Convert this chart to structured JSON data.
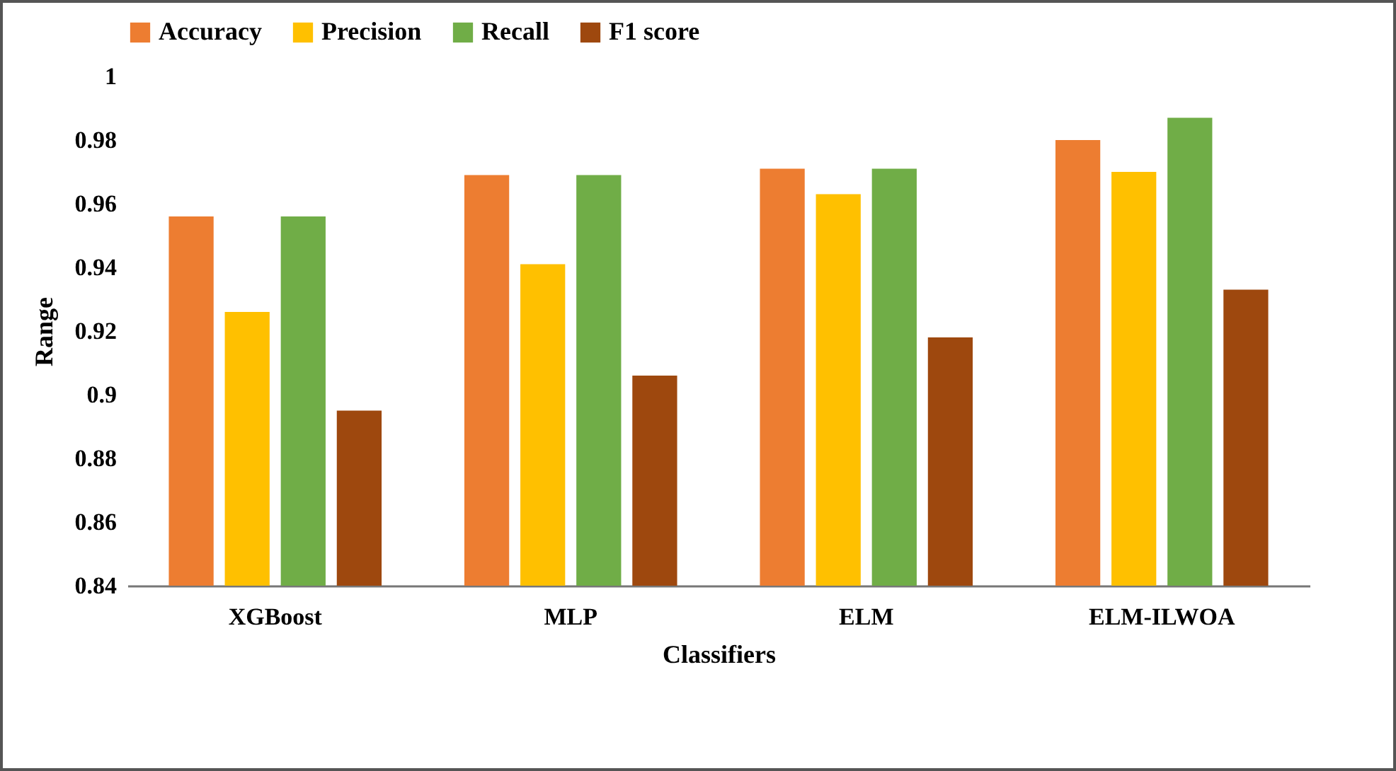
{
  "chart_data": {
    "type": "bar",
    "xlabel": "Classifiers",
    "ylabel": "Range",
    "categories": [
      "XGBoost",
      "MLP",
      "ELM",
      "ELM-ILWOA"
    ],
    "series": [
      {
        "name": "Accuracy",
        "color": "#ed7d31",
        "values": [
          0.956,
          0.969,
          0.971,
          0.98
        ]
      },
      {
        "name": "Precision",
        "color": "#ffc000",
        "values": [
          0.926,
          0.941,
          0.963,
          0.97
        ]
      },
      {
        "name": "Recall",
        "color": "#70ad47",
        "values": [
          0.956,
          0.969,
          0.971,
          0.987
        ]
      },
      {
        "name": "F1 score",
        "color": "#9e480e",
        "values": [
          0.895,
          0.906,
          0.918,
          0.933
        ]
      }
    ],
    "ylim": [
      0.84,
      1
    ],
    "yticks": [
      0.84,
      0.86,
      0.88,
      0.9,
      0.92,
      0.94,
      0.96,
      0.98,
      1
    ],
    "grid": false,
    "legend": "top"
  }
}
